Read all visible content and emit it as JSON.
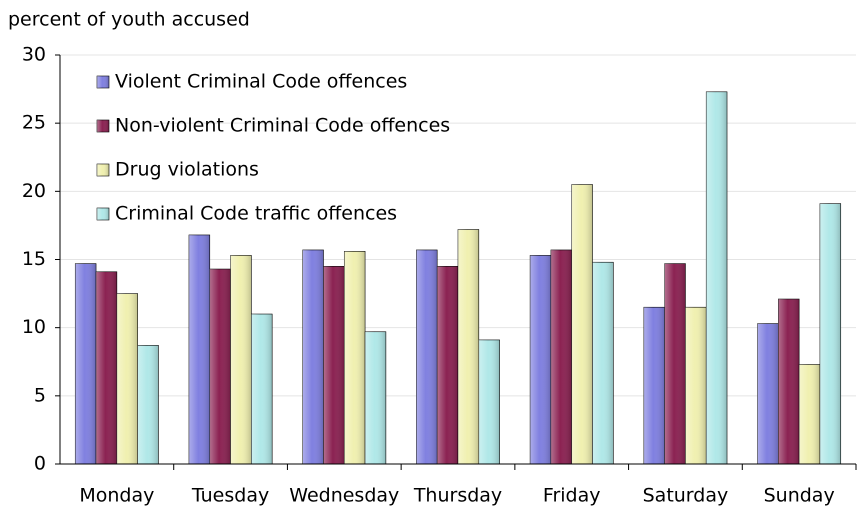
{
  "chart_data": {
    "type": "bar",
    "y_label": "percent of youth accused",
    "categories": [
      "Monday",
      "Tuesday",
      "Wednesday",
      "Thursday",
      "Friday",
      "Saturday",
      "Sunday"
    ],
    "series": [
      {
        "name": "Violent Criminal Code offences",
        "color": "#8080e0",
        "values": [
          14.7,
          16.8,
          15.7,
          15.7,
          15.3,
          11.5,
          10.3
        ]
      },
      {
        "name": "Non-violent Criminal Code offences",
        "color": "#8b2252",
        "values": [
          14.1,
          14.3,
          14.5,
          14.5,
          15.7,
          14.7,
          12.1
        ]
      },
      {
        "name": "Drug violations",
        "color": "#f0f0b0",
        "values": [
          12.5,
          15.3,
          15.6,
          17.2,
          20.5,
          11.5,
          7.3
        ]
      },
      {
        "name": "Criminal Code traffic offences",
        "color": "#b0e8e8",
        "values": [
          8.7,
          11.0,
          9.7,
          9.1,
          14.8,
          27.3,
          19.1
        ]
      }
    ],
    "ylim": [
      0,
      30
    ],
    "yticks": [
      0,
      5,
      10,
      15,
      20,
      25,
      30
    ],
    "grid": true,
    "legend": "top-left"
  }
}
